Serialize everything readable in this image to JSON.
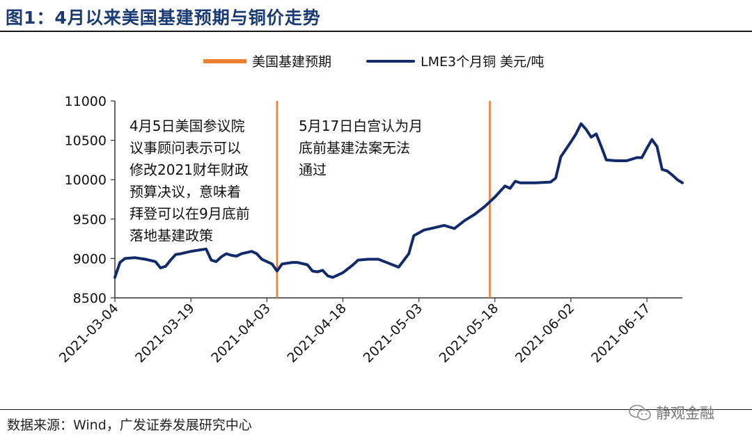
{
  "header": {
    "title": "图1：4月以来美国基建预期与铜价走势"
  },
  "legend": {
    "items": [
      {
        "label": "美国基建预期",
        "color": "#ed7d31"
      },
      {
        "label": "LME3个月铜 美元/吨",
        "color": "#112a6b"
      }
    ]
  },
  "annotations": [
    {
      "lines": [
        "4月5日美国参议院",
        "议事顾问表示可以",
        "修改2021财年财政",
        "预算决议，意味着",
        "拜登可以在9月底前",
        "落地基建政策"
      ]
    },
    {
      "lines": [
        "5月17日白宫认为月",
        "底前基建法案无法",
        "通过"
      ]
    }
  ],
  "footer": {
    "source": "数据来源：Wind，广发证券发展研究中心",
    "watermark": "静观金融"
  },
  "chart_data": {
    "type": "line",
    "xlabel": "",
    "ylabel": "",
    "ylim": [
      8500,
      11000
    ],
    "yticks": [
      8500,
      9000,
      9500,
      10000,
      10500,
      11000
    ],
    "xticks": [
      "2021-03-04",
      "2021-03-19",
      "2021-04-03",
      "2021-04-18",
      "2021-05-03",
      "2021-05-18",
      "2021-06-02",
      "2021-06-17"
    ],
    "xrange": [
      "2021-03-04",
      "2021-06-24"
    ],
    "events": [
      {
        "date": "2021-04-05",
        "series": "美国基建预期"
      },
      {
        "date": "2021-05-17",
        "series": "美国基建预期"
      }
    ],
    "series": [
      {
        "name": "LME3个月铜 美元/吨",
        "color": "#112a6b",
        "points": [
          [
            "2021-03-04",
            8760
          ],
          [
            "2021-03-05",
            8950
          ],
          [
            "2021-03-06",
            9000
          ],
          [
            "2021-03-08",
            9010
          ],
          [
            "2021-03-10",
            8990
          ],
          [
            "2021-03-12",
            8960
          ],
          [
            "2021-03-13",
            8880
          ],
          [
            "2021-03-14",
            8900
          ],
          [
            "2021-03-15",
            8980
          ],
          [
            "2021-03-16",
            9050
          ],
          [
            "2021-03-17",
            9060
          ],
          [
            "2021-03-19",
            9090
          ],
          [
            "2021-03-21",
            9110
          ],
          [
            "2021-03-22",
            9120
          ],
          [
            "2021-03-23",
            8980
          ],
          [
            "2021-03-24",
            8960
          ],
          [
            "2021-03-25",
            9020
          ],
          [
            "2021-03-26",
            9060
          ],
          [
            "2021-03-27",
            9040
          ],
          [
            "2021-03-28",
            9030
          ],
          [
            "2021-03-29",
            9060
          ],
          [
            "2021-03-31",
            9090
          ],
          [
            "2021-04-01",
            9060
          ],
          [
            "2021-04-02",
            8990
          ],
          [
            "2021-04-04",
            8930
          ],
          [
            "2021-04-05",
            8840
          ],
          [
            "2021-04-06",
            8930
          ],
          [
            "2021-04-08",
            8950
          ],
          [
            "2021-04-09",
            8950
          ],
          [
            "2021-04-11",
            8920
          ],
          [
            "2021-04-12",
            8840
          ],
          [
            "2021-04-13",
            8830
          ],
          [
            "2021-04-14",
            8850
          ],
          [
            "2021-04-15",
            8780
          ],
          [
            "2021-04-16",
            8760
          ],
          [
            "2021-04-18",
            8820
          ],
          [
            "2021-04-20",
            8920
          ],
          [
            "2021-04-21",
            8980
          ],
          [
            "2021-04-23",
            8990
          ],
          [
            "2021-04-25",
            8990
          ],
          [
            "2021-04-27",
            8940
          ],
          [
            "2021-04-29",
            8890
          ],
          [
            "2021-05-01",
            9060
          ],
          [
            "2021-05-02",
            9290
          ],
          [
            "2021-05-04",
            9360
          ],
          [
            "2021-05-06",
            9390
          ],
          [
            "2021-05-08",
            9420
          ],
          [
            "2021-05-10",
            9380
          ],
          [
            "2021-05-12",
            9480
          ],
          [
            "2021-05-14",
            9560
          ],
          [
            "2021-05-16",
            9660
          ],
          [
            "2021-05-18",
            9780
          ],
          [
            "2021-05-19",
            9850
          ],
          [
            "2021-05-20",
            9920
          ],
          [
            "2021-05-21",
            9890
          ],
          [
            "2021-05-22",
            9980
          ],
          [
            "2021-05-23",
            9960
          ],
          [
            "2021-05-26",
            9960
          ],
          [
            "2021-05-29",
            9970
          ],
          [
            "2021-05-30",
            10020
          ],
          [
            "2021-05-31",
            10290
          ],
          [
            "2021-06-02",
            10480
          ],
          [
            "2021-06-03",
            10580
          ],
          [
            "2021-06-04",
            10710
          ],
          [
            "2021-06-05",
            10640
          ],
          [
            "2021-06-06",
            10540
          ],
          [
            "2021-06-07",
            10580
          ],
          [
            "2021-06-08",
            10420
          ],
          [
            "2021-06-09",
            10250
          ],
          [
            "2021-06-11",
            10240
          ],
          [
            "2021-06-13",
            10240
          ],
          [
            "2021-06-15",
            10280
          ],
          [
            "2021-06-16",
            10280
          ],
          [
            "2021-06-17",
            10400
          ],
          [
            "2021-06-18",
            10510
          ],
          [
            "2021-06-19",
            10420
          ],
          [
            "2021-06-20",
            10130
          ],
          [
            "2021-06-21",
            10110
          ],
          [
            "2021-06-22",
            10060
          ],
          [
            "2021-06-23",
            10000
          ],
          [
            "2021-06-24",
            9960
          ]
        ]
      }
    ]
  }
}
